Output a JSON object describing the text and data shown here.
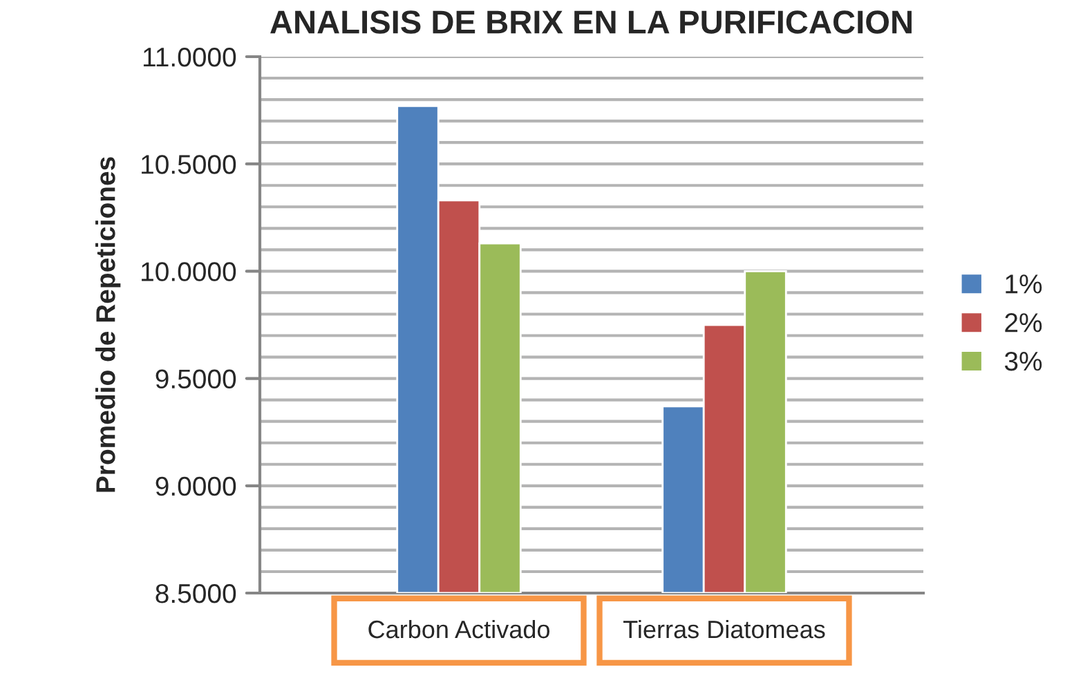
{
  "chart_data": {
    "type": "bar",
    "title": "ANALISIS DE BRIX EN LA PURIFICACION",
    "ylabel": "Promedio de Repeticiones",
    "categories": [
      "Carbon Activado",
      "Tierras Diatomeas"
    ],
    "series": [
      {
        "name": "1%",
        "color": "#4f81bd",
        "values": [
          10.77,
          9.37
        ]
      },
      {
        "name": "2%",
        "color": "#c0504d",
        "values": [
          10.33,
          9.75
        ]
      },
      {
        "name": "3%",
        "color": "#9bbb59",
        "values": [
          10.13,
          10.0
        ]
      }
    ],
    "ylim": [
      8.5,
      11.0
    ],
    "yticks": [
      {
        "value": 8.5,
        "label": "8.5000"
      },
      {
        "value": 8.6,
        "label": null
      },
      {
        "value": 8.7,
        "label": null
      },
      {
        "value": 8.8,
        "label": null
      },
      {
        "value": 8.9,
        "label": null
      },
      {
        "value": 9.0,
        "label": "9.0000"
      },
      {
        "value": 9.1,
        "label": null
      },
      {
        "value": 9.2,
        "label": null
      },
      {
        "value": 9.3,
        "label": null
      },
      {
        "value": 9.4,
        "label": null
      },
      {
        "value": 9.5,
        "label": "9.5000"
      },
      {
        "value": 9.6,
        "label": null
      },
      {
        "value": 9.7,
        "label": null
      },
      {
        "value": 9.8,
        "label": null
      },
      {
        "value": 9.9,
        "label": null
      },
      {
        "value": 10.0,
        "label": "10.0000"
      },
      {
        "value": 10.1,
        "label": null
      },
      {
        "value": 10.2,
        "label": null
      },
      {
        "value": 10.3,
        "label": null
      },
      {
        "value": 10.4,
        "label": null
      },
      {
        "value": 10.5,
        "label": "10.5000"
      },
      {
        "value": 10.6,
        "label": null
      },
      {
        "value": 10.7,
        "label": null
      },
      {
        "value": 10.8,
        "label": null
      },
      {
        "value": 10.9,
        "label": null
      },
      {
        "value": 11.0,
        "label": "11.0000"
      }
    ],
    "grid": "y",
    "legend": "right"
  }
}
